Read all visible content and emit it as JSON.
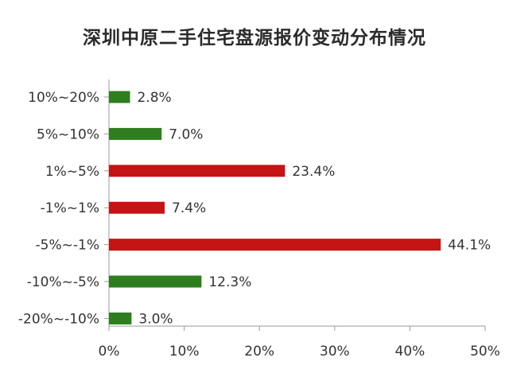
{
  "colors": {
    "positive": "#2e7d1f",
    "negative": "#c41414",
    "axis": "#9a9a9a"
  },
  "chart_data": {
    "type": "bar",
    "orientation": "horizontal",
    "title": "深圳中原二手住宅盘源报价变动分布情况",
    "categories": [
      "10%~20%",
      "5%~10%",
      "1%~5%",
      "-1%~1%",
      "-5%~-1%",
      "-10%~-5%",
      "-20%~-10%"
    ],
    "values": [
      2.8,
      7.0,
      23.4,
      7.4,
      44.1,
      12.3,
      3.0
    ],
    "value_labels": [
      "2.8%",
      "7.0%",
      "23.4%",
      "7.4%",
      "44.1%",
      "12.3%",
      "3.0%"
    ],
    "bar_colors": [
      "#2e7d1f",
      "#2e7d1f",
      "#c41414",
      "#c41414",
      "#c41414",
      "#2e7d1f",
      "#2e7d1f"
    ],
    "xlim": [
      0,
      50
    ],
    "x_ticks": [
      0,
      10,
      20,
      30,
      40,
      50
    ],
    "x_tick_labels": [
      "0%",
      "10%",
      "20%",
      "30%",
      "40%",
      "50%"
    ],
    "grid": false,
    "legend": "none"
  }
}
